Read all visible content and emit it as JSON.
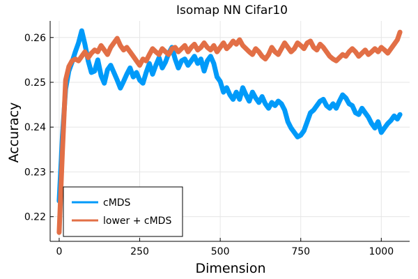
{
  "chart_data": {
    "type": "line",
    "title": "Isomap NN Cifar10",
    "xlabel": "Dimension",
    "ylabel": "Accuracy",
    "xlim": [
      -28,
      1088
    ],
    "ylim": [
      0.2145,
      0.2637
    ],
    "xticks": [
      0,
      250,
      500,
      750,
      1000
    ],
    "xtick_labels": [
      "0",
      "250",
      "500",
      "750",
      "1000"
    ],
    "yticks": [
      0.22,
      0.23,
      0.24,
      0.25,
      0.26
    ],
    "ytick_labels": [
      "0.22",
      "0.23",
      "0.24",
      "0.25",
      "0.26"
    ],
    "grid": true,
    "legend_position": "bottom-left",
    "series": [
      {
        "name": "cMDS",
        "color": "#009af9",
        "x": [
          0,
          10,
          20,
          30,
          40,
          50,
          60,
          70,
          80,
          90,
          100,
          110,
          120,
          130,
          140,
          150,
          160,
          170,
          180,
          190,
          200,
          210,
          220,
          230,
          240,
          250,
          260,
          270,
          280,
          290,
          300,
          310,
          320,
          330,
          340,
          350,
          360,
          370,
          380,
          390,
          400,
          410,
          420,
          430,
          440,
          450,
          460,
          470,
          480,
          490,
          500,
          510,
          520,
          530,
          540,
          550,
          560,
          570,
          580,
          590,
          600,
          610,
          620,
          630,
          640,
          650,
          660,
          670,
          680,
          690,
          700,
          710,
          720,
          730,
          740,
          750,
          760,
          770,
          780,
          790,
          800,
          810,
          820,
          830,
          840,
          850,
          860,
          870,
          880,
          890,
          900,
          910,
          920,
          930,
          940,
          950,
          960,
          970,
          980,
          990,
          1000,
          1010,
          1020,
          1030,
          1040,
          1050,
          1058
        ],
        "values": [
          0.2235,
          0.238,
          0.2485,
          0.2525,
          0.2545,
          0.2568,
          0.2588,
          0.2615,
          0.2585,
          0.2548,
          0.2522,
          0.2525,
          0.255,
          0.2515,
          0.2498,
          0.2528,
          0.2538,
          0.2522,
          0.2505,
          0.2487,
          0.2502,
          0.2518,
          0.2532,
          0.2512,
          0.2522,
          0.2505,
          0.2498,
          0.2522,
          0.2542,
          0.2518,
          0.2538,
          0.2555,
          0.2532,
          0.2545,
          0.2565,
          0.2578,
          0.2552,
          0.2532,
          0.2548,
          0.2552,
          0.2538,
          0.2548,
          0.2558,
          0.2542,
          0.2552,
          0.2525,
          0.2548,
          0.2558,
          0.2542,
          0.2512,
          0.2502,
          0.2478,
          0.2488,
          0.2472,
          0.2462,
          0.2478,
          0.2462,
          0.2488,
          0.2472,
          0.2458,
          0.2478,
          0.2465,
          0.2455,
          0.2468,
          0.2452,
          0.2442,
          0.2455,
          0.2448,
          0.2458,
          0.2452,
          0.2438,
          0.2412,
          0.2398,
          0.2388,
          0.2378,
          0.2382,
          0.2392,
          0.2412,
          0.2432,
          0.2438,
          0.2448,
          0.2458,
          0.2462,
          0.2448,
          0.2442,
          0.2452,
          0.2442,
          0.2458,
          0.2472,
          0.2465,
          0.2452,
          0.2448,
          0.2432,
          0.2428,
          0.2442,
          0.2432,
          0.2422,
          0.2408,
          0.2398,
          0.2412,
          0.2388,
          0.2398,
          0.2408,
          0.2415,
          0.2425,
          0.2418,
          0.2428
        ]
      },
      {
        "name": "lower + cMDS",
        "color": "#e26f46",
        "x": [
          0,
          10,
          20,
          30,
          40,
          50,
          60,
          70,
          80,
          90,
          100,
          110,
          120,
          130,
          140,
          150,
          160,
          170,
          180,
          190,
          200,
          210,
          220,
          230,
          240,
          250,
          260,
          270,
          280,
          290,
          300,
          310,
          320,
          330,
          340,
          350,
          360,
          370,
          380,
          390,
          400,
          410,
          420,
          430,
          440,
          450,
          460,
          470,
          480,
          490,
          500,
          510,
          520,
          530,
          540,
          550,
          560,
          570,
          580,
          590,
          600,
          610,
          620,
          630,
          640,
          650,
          660,
          670,
          680,
          690,
          700,
          710,
          720,
          730,
          740,
          750,
          760,
          770,
          780,
          790,
          800,
          810,
          820,
          830,
          840,
          850,
          860,
          870,
          880,
          890,
          900,
          910,
          920,
          930,
          940,
          950,
          960,
          970,
          980,
          990,
          1000,
          1010,
          1020,
          1030,
          1040,
          1050,
          1058
        ],
        "values": [
          0.2165,
          0.2345,
          0.2505,
          0.2535,
          0.2548,
          0.2552,
          0.2548,
          0.2558,
          0.2568,
          0.2555,
          0.2565,
          0.2572,
          0.2568,
          0.2582,
          0.2572,
          0.2562,
          0.2578,
          0.2588,
          0.2598,
          0.2582,
          0.2572,
          0.2578,
          0.2568,
          0.2558,
          0.2548,
          0.2538,
          0.2552,
          0.2548,
          0.2562,
          0.2575,
          0.2568,
          0.2562,
          0.2575,
          0.2568,
          0.2562,
          0.2575,
          0.2578,
          0.2568,
          0.2575,
          0.2582,
          0.2568,
          0.2578,
          0.2585,
          0.2572,
          0.2578,
          0.2588,
          0.2578,
          0.2572,
          0.2582,
          0.2568,
          0.2578,
          0.2588,
          0.2575,
          0.2582,
          0.2592,
          0.2585,
          0.2595,
          0.2582,
          0.2575,
          0.2568,
          0.2562,
          0.2575,
          0.2568,
          0.2558,
          0.2552,
          0.2562,
          0.2578,
          0.2568,
          0.2562,
          0.2575,
          0.2588,
          0.2578,
          0.2568,
          0.2575,
          0.2588,
          0.2582,
          0.2575,
          0.2588,
          0.2592,
          0.2578,
          0.2572,
          0.2585,
          0.2578,
          0.2568,
          0.2558,
          0.2552,
          0.2548,
          0.2555,
          0.2562,
          0.2558,
          0.2568,
          0.2575,
          0.2568,
          0.2558,
          0.2565,
          0.2572,
          0.2562,
          0.2568,
          0.2575,
          0.2568,
          0.2578,
          0.2572,
          0.2565,
          0.2575,
          0.2585,
          0.2595,
          0.2612
        ]
      }
    ]
  }
}
